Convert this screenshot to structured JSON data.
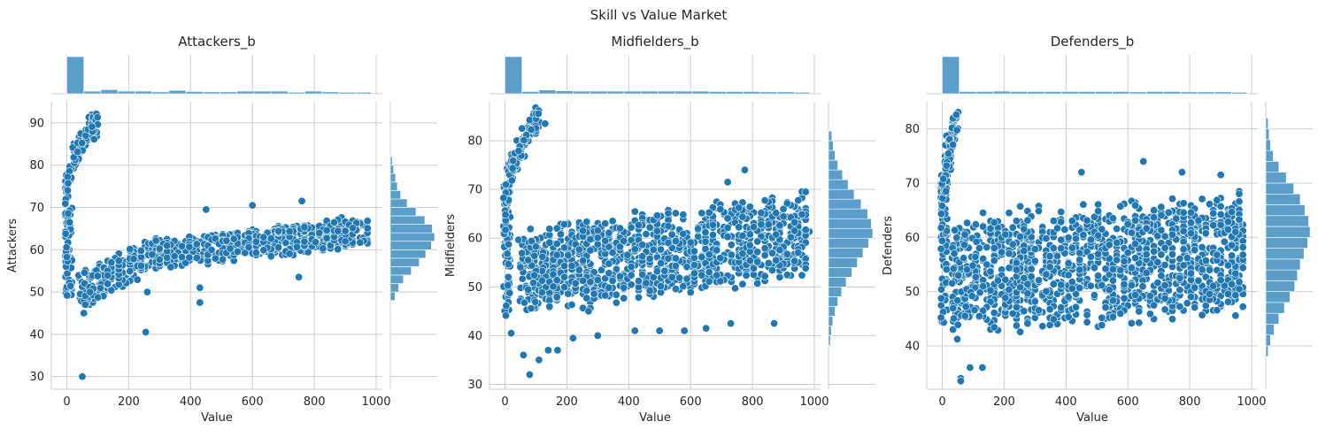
{
  "figure": {
    "suptitle": "Skill vs Value Market"
  },
  "chart_data": [
    {
      "type": "scatter",
      "title": "Attackers_b",
      "xlabel": "Value",
      "ylabel": "Attackers",
      "xlim": [
        -50,
        1020
      ],
      "ylim": [
        27,
        95
      ],
      "xticks": [
        "0",
        "200",
        "400",
        "600",
        "800",
        "1000"
      ],
      "yticks": [
        "30",
        "40",
        "50",
        "60",
        "70",
        "80",
        "90"
      ],
      "color": "#1f77b4",
      "marginal_x": {
        "bin_edges": [
          0,
          55,
          110,
          165,
          220,
          275,
          330,
          385,
          440,
          495,
          550,
          605,
          660,
          715,
          770,
          825,
          880,
          935,
          985
        ],
        "counts": [
          100,
          7,
          11,
          7,
          7,
          5,
          9,
          6,
          5,
          5,
          7,
          7,
          7,
          4,
          7,
          5,
          4,
          4
        ]
      },
      "marginal_y": {
        "bin_edges": [
          48,
          50,
          52,
          54,
          56,
          58,
          60,
          62,
          64,
          66,
          68,
          70,
          72,
          74,
          76,
          78,
          80,
          82
        ],
        "counts": [
          10,
          18,
          28,
          45,
          62,
          76,
          88,
          95,
          90,
          74,
          55,
          36,
          22,
          15,
          11,
          7,
          4
        ]
      },
      "groups": [
        {
          "kind": "young_rising",
          "x_range": [
            0,
            100
          ],
          "y_start": 72,
          "y_end": 91,
          "count": 110
        },
        {
          "kind": "low_spread",
          "x_range": [
            0,
            12
          ],
          "y_range": [
            49,
            72
          ],
          "count": 60
        },
        {
          "kind": "rising_band",
          "x_range": [
            40,
            300
          ],
          "y_start": 50,
          "y_end": 60,
          "half_width": 4.5,
          "count": 220
        },
        {
          "kind": "flat_band",
          "x_range": [
            280,
            980
          ],
          "y_start": 58.5,
          "y_end": 64.5,
          "half_width": 4,
          "count": 520
        }
      ],
      "outliers": [
        [
          50,
          30
        ],
        [
          255,
          40.5
        ],
        [
          430,
          47.5
        ],
        [
          430,
          51
        ],
        [
          260,
          50
        ],
        [
          750,
          53.5
        ],
        [
          760,
          71.5
        ],
        [
          600,
          70.5
        ],
        [
          450,
          69.5
        ],
        [
          55,
          45
        ],
        [
          60,
          47
        ]
      ]
    },
    {
      "type": "scatter",
      "title": "Midfielders_b",
      "xlabel": "Value",
      "ylabel": "Midfielders",
      "xlim": [
        -50,
        1020
      ],
      "ylim": [
        29,
        88
      ],
      "xticks": [
        "0",
        "200",
        "400",
        "600",
        "800",
        "1000"
      ],
      "yticks": [
        "30",
        "40",
        "50",
        "60",
        "70",
        "80"
      ],
      "color": "#1f77b4",
      "marginal_x": {
        "bin_edges": [
          0,
          55,
          110,
          165,
          220,
          275,
          330,
          385,
          440,
          495,
          550,
          605,
          660,
          715,
          770,
          825,
          880,
          935,
          985
        ],
        "counts": [
          100,
          6,
          10,
          8,
          7,
          7,
          7,
          7,
          7,
          7,
          7,
          7,
          6,
          6,
          6,
          5,
          5,
          4
        ]
      },
      "marginal_y": {
        "bin_edges": [
          38,
          40,
          42,
          44,
          46,
          48,
          50,
          52,
          54,
          56,
          58,
          60,
          62,
          64,
          66,
          68,
          70,
          72,
          74,
          76,
          78,
          80,
          82
        ],
        "counts": [
          4,
          6,
          9,
          14,
          20,
          28,
          38,
          50,
          62,
          74,
          86,
          95,
          92,
          84,
          70,
          55,
          42,
          30,
          20,
          14,
          10,
          7,
          4
        ]
      },
      "groups": [
        {
          "kind": "young_rising",
          "x_range": [
            0,
            110
          ],
          "y_start": 66,
          "y_end": 85,
          "count": 120
        },
        {
          "kind": "low_spread",
          "x_range": [
            0,
            15
          ],
          "y_range": [
            44,
            70
          ],
          "count": 70
        },
        {
          "kind": "wide_band",
          "x_range": [
            50,
            980
          ],
          "y_start": 53,
          "y_end": 61,
          "half_width": 9.5,
          "count": 1100
        }
      ],
      "outliers": [
        [
          80,
          32
        ],
        [
          110,
          35
        ],
        [
          60,
          36
        ],
        [
          140,
          37
        ],
        [
          170,
          37
        ],
        [
          220,
          39.5
        ],
        [
          300,
          40
        ],
        [
          420,
          41
        ],
        [
          500,
          41
        ],
        [
          580,
          41
        ],
        [
          650,
          41.5
        ],
        [
          730,
          42.5
        ],
        [
          870,
          42.5
        ],
        [
          130,
          83.5
        ],
        [
          775,
          74
        ],
        [
          720,
          71.5
        ],
        [
          20,
          40.5
        ],
        [
          270,
          45
        ]
      ]
    },
    {
      "type": "scatter",
      "title": "Defenders_b",
      "xlabel": "Value",
      "ylabel": "Defenders",
      "xlim": [
        -50,
        1020
      ],
      "ylim": [
        32,
        85
      ],
      "xticks": [
        "0",
        "200",
        "400",
        "600",
        "800",
        "1000"
      ],
      "yticks": [
        "40",
        "50",
        "60",
        "70",
        "80"
      ],
      "color": "#1f77b4",
      "marginal_x": {
        "bin_edges": [
          0,
          55,
          110,
          165,
          220,
          275,
          330,
          385,
          440,
          495,
          550,
          605,
          660,
          715,
          770,
          825,
          880,
          935,
          985
        ],
        "counts": [
          100,
          6,
          6,
          7,
          6,
          6,
          6,
          6,
          6,
          6,
          6,
          5,
          6,
          6,
          5,
          5,
          5,
          4
        ]
      },
      "marginal_y": {
        "bin_edges": [
          38,
          40,
          42,
          44,
          46,
          48,
          50,
          52,
          54,
          56,
          58,
          60,
          62,
          64,
          66,
          68,
          70,
          72,
          74,
          76,
          78,
          80,
          82
        ],
        "counts": [
          5,
          10,
          18,
          28,
          40,
          52,
          62,
          68,
          74,
          82,
          90,
          95,
          92,
          84,
          74,
          60,
          44,
          28,
          16,
          10,
          7,
          5,
          3
        ]
      },
      "groups": [
        {
          "kind": "young_rising",
          "x_range": [
            0,
            45
          ],
          "y_start": 64,
          "y_end": 82,
          "count": 110
        },
        {
          "kind": "low_spread",
          "x_range": [
            0,
            12
          ],
          "y_range": [
            44,
            72
          ],
          "count": 70
        },
        {
          "kind": "wide_band",
          "x_range": [
            30,
            980
          ],
          "y_start": 53,
          "y_end": 57,
          "half_width": 12,
          "count": 1300
        }
      ],
      "outliers": [
        [
          60,
          34
        ],
        [
          90,
          36
        ],
        [
          130,
          36
        ],
        [
          650,
          74
        ],
        [
          450,
          72
        ],
        [
          775,
          72
        ],
        [
          900,
          71.5
        ],
        [
          60,
          33.5
        ]
      ]
    }
  ]
}
